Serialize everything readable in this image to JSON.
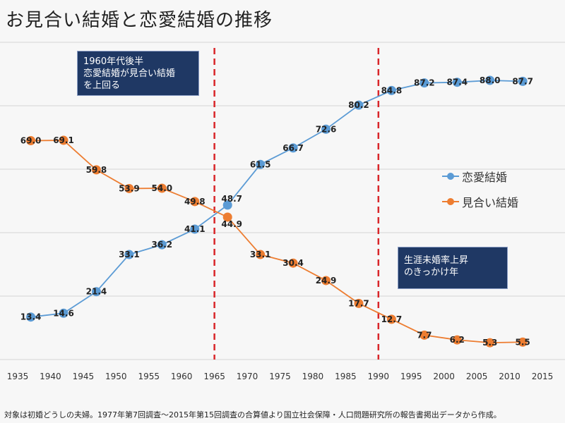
{
  "title": "お見合い結婚と恋愛結婚の推移",
  "footnote": "対象は初婚どうしの夫婦。1977年第7回調査～2015年第15回調査の合算値より国立社会保障・人口問題研究所の報告書掲出データから作成。",
  "callouts": {
    "first": [
      "1960年代後半",
      "恋愛結婚が見合い結婚",
      "を上回る"
    ],
    "second": [
      "生涯未婚率上昇",
      "のきっかけ年"
    ]
  },
  "colors": {
    "love": "#5b9bd5",
    "arranged": "#ed7d31",
    "reference_line": "#d9262a",
    "callout_bg": "#1f3864"
  },
  "chart_data": {
    "type": "line",
    "x": [
      1937,
      1942,
      1947,
      1952,
      1957,
      1962,
      1967,
      1972,
      1977,
      1982,
      1987,
      1992,
      1997,
      2002,
      2007,
      2012
    ],
    "series": [
      {
        "name": "恋愛結婚",
        "color": "#5b9bd5",
        "values": [
          13.4,
          14.6,
          21.4,
          33.1,
          36.2,
          41.1,
          48.7,
          61.5,
          66.7,
          72.6,
          80.2,
          84.8,
          87.2,
          87.4,
          88.0,
          87.7
        ]
      },
      {
        "name": "見合い結婚",
        "color": "#ed7d31",
        "values": [
          69.0,
          69.1,
          59.8,
          53.9,
          54.0,
          49.8,
          44.9,
          33.1,
          30.4,
          24.9,
          17.7,
          12.7,
          7.7,
          6.2,
          5.3,
          5.5
        ]
      }
    ],
    "xticks": [
      "1935",
      "1940",
      "1945",
      "1950",
      "1955",
      "1960",
      "1965",
      "1970",
      "1975",
      "1980",
      "1985",
      "1990",
      "1995",
      "2000",
      "2005",
      "2010",
      "2015"
    ],
    "xlim": [
      1935,
      2015
    ],
    "ylim": [
      0,
      100
    ],
    "grid": true,
    "yticks_visible": false,
    "reference_lines_x": [
      1965,
      1990
    ],
    "legend": "right"
  }
}
